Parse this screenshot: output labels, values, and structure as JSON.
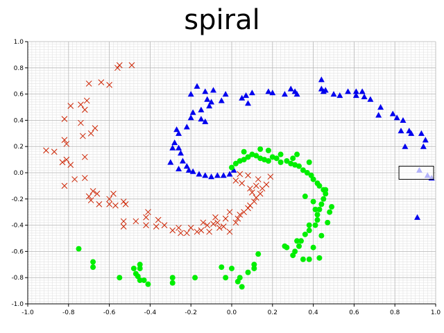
{
  "chart_data": {
    "type": "scatter",
    "title": "spiral",
    "xlabel": "",
    "ylabel": "",
    "xlim": [
      -1.0,
      1.0
    ],
    "ylim": [
      -1.0,
      1.0
    ],
    "xticks": [
      "-1.0",
      "-0.8",
      "-0.6",
      "-0.4",
      "-0.2",
      "0.0",
      "0.2",
      "0.4",
      "0.6",
      "0.8",
      "1.0"
    ],
    "yticks": [
      "1.0",
      "0.8",
      "0.6",
      "0.4",
      "0.2",
      "0.0",
      "-0.2",
      "-0.4",
      "-0.6",
      "-0.8",
      "-1.0"
    ],
    "grid": true,
    "minor_grid": true,
    "selection_box": {
      "x": [
        0.82,
        0.99
      ],
      "y": [
        -0.05,
        0.05
      ]
    },
    "series": [
      {
        "marker": "x",
        "color": "#cc2200",
        "points": [
          [
            -0.55,
            0.82
          ],
          [
            -0.56,
            0.8
          ],
          [
            -0.49,
            0.82
          ],
          [
            -0.7,
            0.68
          ],
          [
            -0.64,
            0.69
          ],
          [
            -0.6,
            0.67
          ],
          [
            -0.71,
            0.55
          ],
          [
            -0.74,
            0.52
          ],
          [
            -0.79,
            0.51
          ],
          [
            -0.72,
            0.48
          ],
          [
            -0.82,
            0.41
          ],
          [
            -0.74,
            0.38
          ],
          [
            -0.67,
            0.34
          ],
          [
            -0.69,
            0.3
          ],
          [
            -0.73,
            0.28
          ],
          [
            -0.82,
            0.25
          ],
          [
            -0.81,
            0.22
          ],
          [
            -0.91,
            0.17
          ],
          [
            -0.87,
            0.16
          ],
          [
            -0.72,
            0.12
          ],
          [
            -0.81,
            0.1
          ],
          [
            -0.83,
            0.08
          ],
          [
            -0.79,
            0.06
          ],
          [
            -0.77,
            -0.05
          ],
          [
            -0.72,
            -0.04
          ],
          [
            -0.82,
            -0.1
          ],
          [
            -0.68,
            -0.14
          ],
          [
            -0.66,
            -0.16
          ],
          [
            -0.7,
            -0.18
          ],
          [
            -0.6,
            -0.2
          ],
          [
            -0.58,
            -0.16
          ],
          [
            -0.69,
            -0.21
          ],
          [
            -0.65,
            -0.24
          ],
          [
            -0.6,
            -0.24
          ],
          [
            -0.57,
            -0.25
          ],
          [
            -0.52,
            -0.24
          ],
          [
            -0.53,
            -0.22
          ],
          [
            -0.41,
            -0.3
          ],
          [
            -0.42,
            -0.34
          ],
          [
            -0.53,
            -0.37
          ],
          [
            -0.53,
            -0.41
          ],
          [
            -0.42,
            -0.4
          ],
          [
            -0.37,
            -0.41
          ],
          [
            -0.33,
            -0.4
          ],
          [
            -0.29,
            -0.44
          ],
          [
            -0.25,
            -0.46
          ],
          [
            -0.26,
            -0.42
          ],
          [
            -0.17,
            -0.45
          ],
          [
            -0.12,
            -0.4
          ],
          [
            -0.15,
            -0.44
          ],
          [
            -0.14,
            -0.38
          ],
          [
            -0.11,
            -0.45
          ],
          [
            -0.09,
            -0.39
          ],
          [
            -0.08,
            -0.34
          ],
          [
            -0.06,
            -0.42
          ],
          [
            -0.04,
            -0.41
          ],
          [
            -0.03,
            -0.35
          ],
          [
            -0.01,
            -0.3
          ],
          [
            -0.01,
            -0.45
          ],
          [
            0.02,
            -0.38
          ],
          [
            0.03,
            -0.35
          ],
          [
            0.04,
            -0.32
          ],
          [
            0.06,
            -0.3
          ],
          [
            0.08,
            -0.27
          ],
          [
            0.09,
            -0.25
          ],
          [
            0.11,
            -0.22
          ],
          [
            0.12,
            -0.19
          ],
          [
            0.14,
            -0.16
          ],
          [
            0.15,
            -0.12
          ],
          [
            0.17,
            -0.09
          ],
          [
            0.19,
            -0.03
          ],
          [
            0.12,
            -0.1
          ],
          [
            0.08,
            -0.02
          ],
          [
            0.04,
            -0.01
          ],
          [
            0.02,
            -0.06
          ],
          [
            0.05,
            -0.08
          ],
          [
            0.1,
            -0.15
          ],
          [
            0.13,
            -0.05
          ],
          [
            -0.07,
            -0.38
          ],
          [
            -0.22,
            -0.46
          ],
          [
            -0.36,
            -0.36
          ],
          [
            -0.47,
            -0.37
          ],
          [
            -0.2,
            -0.42
          ],
          [
            0.09,
            -0.12
          ]
        ]
      },
      {
        "marker": "triangle",
        "color": "#0000ee",
        "points": [
          [
            0.44,
            0.71
          ],
          [
            0.44,
            0.64
          ],
          [
            0.45,
            0.62
          ],
          [
            0.57,
            0.62
          ],
          [
            0.61,
            0.62
          ],
          [
            0.61,
            0.59
          ],
          [
            0.65,
            0.58
          ],
          [
            0.68,
            0.56
          ],
          [
            0.5,
            0.6
          ],
          [
            0.46,
            0.63
          ],
          [
            0.29,
            0.64
          ],
          [
            0.31,
            0.62
          ],
          [
            0.32,
            0.6
          ],
          [
            0.26,
            0.6
          ],
          [
            0.18,
            0.62
          ],
          [
            0.2,
            0.61
          ],
          [
            0.1,
            0.61
          ],
          [
            0.07,
            0.59
          ],
          [
            0.05,
            0.57
          ],
          [
            0.08,
            0.53
          ],
          [
            -0.03,
            0.6
          ],
          [
            -0.05,
            0.55
          ],
          [
            -0.09,
            0.63
          ],
          [
            -0.17,
            0.66
          ],
          [
            -0.13,
            0.62
          ],
          [
            -0.2,
            0.6
          ],
          [
            -0.12,
            0.56
          ],
          [
            -0.1,
            0.54
          ],
          [
            -0.11,
            0.51
          ],
          [
            -0.15,
            0.48
          ],
          [
            -0.19,
            0.46
          ],
          [
            -0.15,
            0.41
          ],
          [
            -0.13,
            0.39
          ],
          [
            -0.2,
            0.42
          ],
          [
            -0.22,
            0.35
          ],
          [
            -0.27,
            0.33
          ],
          [
            -0.26,
            0.3
          ],
          [
            -0.28,
            0.23
          ],
          [
            -0.26,
            0.19
          ],
          [
            -0.29,
            0.19
          ],
          [
            -0.25,
            0.15
          ],
          [
            -0.24,
            0.09
          ],
          [
            -0.3,
            0.08
          ],
          [
            -0.22,
            0.05
          ],
          [
            -0.19,
            0.01
          ],
          [
            -0.16,
            -0.01
          ],
          [
            -0.13,
            -0.02
          ],
          [
            -0.1,
            -0.03
          ],
          [
            -0.07,
            -0.02
          ],
          [
            -0.04,
            -0.02
          ],
          [
            -0.01,
            -0.01
          ],
          [
            0.01,
            0.02
          ],
          [
            -0.21,
            0.02
          ],
          [
            -0.26,
            0.03
          ],
          [
            0.64,
            0.62
          ],
          [
            0.73,
            0.5
          ],
          [
            0.79,
            0.45
          ],
          [
            0.81,
            0.42
          ],
          [
            0.84,
            0.4
          ],
          [
            0.87,
            0.32
          ],
          [
            0.83,
            0.32
          ],
          [
            0.88,
            0.3
          ],
          [
            0.93,
            0.3
          ],
          [
            0.95,
            0.25
          ],
          [
            0.94,
            0.2
          ],
          [
            0.85,
            0.2
          ],
          [
            0.92,
            0.02
          ],
          [
            0.96,
            -0.02
          ],
          [
            0.98,
            -0.04
          ],
          [
            0.91,
            -0.34
          ],
          [
            0.72,
            0.44
          ],
          [
            0.53,
            0.59
          ]
        ]
      },
      {
        "marker": "circle",
        "color": "#00ee00",
        "points": [
          [
            0.0,
            0.04
          ],
          [
            0.02,
            0.07
          ],
          [
            0.04,
            0.09
          ],
          [
            0.06,
            0.1
          ],
          [
            0.08,
            0.12
          ],
          [
            0.1,
            0.14
          ],
          [
            0.12,
            0.13
          ],
          [
            0.14,
            0.11
          ],
          [
            0.16,
            0.1
          ],
          [
            0.18,
            0.09
          ],
          [
            0.2,
            0.12
          ],
          [
            0.22,
            0.11
          ],
          [
            0.24,
            0.14
          ],
          [
            0.27,
            0.09
          ],
          [
            0.29,
            0.07
          ],
          [
            0.31,
            0.06
          ],
          [
            0.33,
            0.05
          ],
          [
            0.35,
            0.02
          ],
          [
            0.37,
            0.0
          ],
          [
            0.39,
            -0.02
          ],
          [
            0.4,
            -0.05
          ],
          [
            0.42,
            -0.08
          ],
          [
            0.43,
            -0.1
          ],
          [
            0.45,
            -0.13
          ],
          [
            0.46,
            -0.16
          ],
          [
            0.45,
            -0.2
          ],
          [
            0.44,
            -0.24
          ],
          [
            0.43,
            -0.28
          ],
          [
            0.42,
            -0.32
          ],
          [
            0.42,
            -0.36
          ],
          [
            0.41,
            -0.4
          ],
          [
            0.38,
            -0.44
          ],
          [
            0.36,
            -0.47
          ],
          [
            0.34,
            -0.52
          ],
          [
            0.33,
            -0.56
          ],
          [
            0.31,
            -0.6
          ],
          [
            0.3,
            -0.63
          ],
          [
            0.27,
            -0.57
          ],
          [
            0.26,
            -0.56
          ],
          [
            0.35,
            -0.66
          ],
          [
            0.38,
            -0.66
          ],
          [
            0.43,
            -0.65
          ],
          [
            0.4,
            -0.57
          ],
          [
            0.13,
            -0.62
          ],
          [
            0.11,
            -0.7
          ],
          [
            0.11,
            -0.73
          ],
          [
            0.08,
            -0.76
          ],
          [
            0.04,
            -0.8
          ],
          [
            0.03,
            -0.83
          ],
          [
            0.05,
            -0.87
          ],
          [
            0.0,
            -0.73
          ],
          [
            -0.05,
            -0.72
          ],
          [
            -0.03,
            -0.8
          ],
          [
            -0.18,
            -0.8
          ],
          [
            -0.29,
            -0.8
          ],
          [
            -0.29,
            -0.84
          ],
          [
            -0.41,
            -0.85
          ],
          [
            -0.43,
            -0.82
          ],
          [
            -0.45,
            -0.82
          ],
          [
            -0.46,
            -0.79
          ],
          [
            -0.47,
            -0.77
          ],
          [
            -0.45,
            -0.73
          ],
          [
            -0.45,
            -0.7
          ],
          [
            -0.48,
            -0.73
          ],
          [
            -0.55,
            -0.8
          ],
          [
            -0.68,
            -0.68
          ],
          [
            -0.68,
            -0.72
          ],
          [
            -0.75,
            -0.58
          ],
          [
            0.14,
            0.18
          ],
          [
            0.18,
            0.17
          ],
          [
            0.06,
            0.16
          ],
          [
            0.24,
            0.08
          ],
          [
            0.38,
            0.08
          ],
          [
            0.3,
            0.11
          ],
          [
            0.32,
            0.14
          ],
          [
            0.46,
            -0.13
          ],
          [
            0.48,
            -0.3
          ],
          [
            0.47,
            -0.38
          ],
          [
            0.49,
            -0.26
          ],
          [
            0.44,
            -0.48
          ],
          [
            0.32,
            -0.52
          ],
          [
            0.38,
            -0.4
          ],
          [
            0.4,
            -0.22
          ],
          [
            0.36,
            -0.18
          ],
          [
            0.41,
            -0.28
          ]
        ]
      }
    ]
  }
}
